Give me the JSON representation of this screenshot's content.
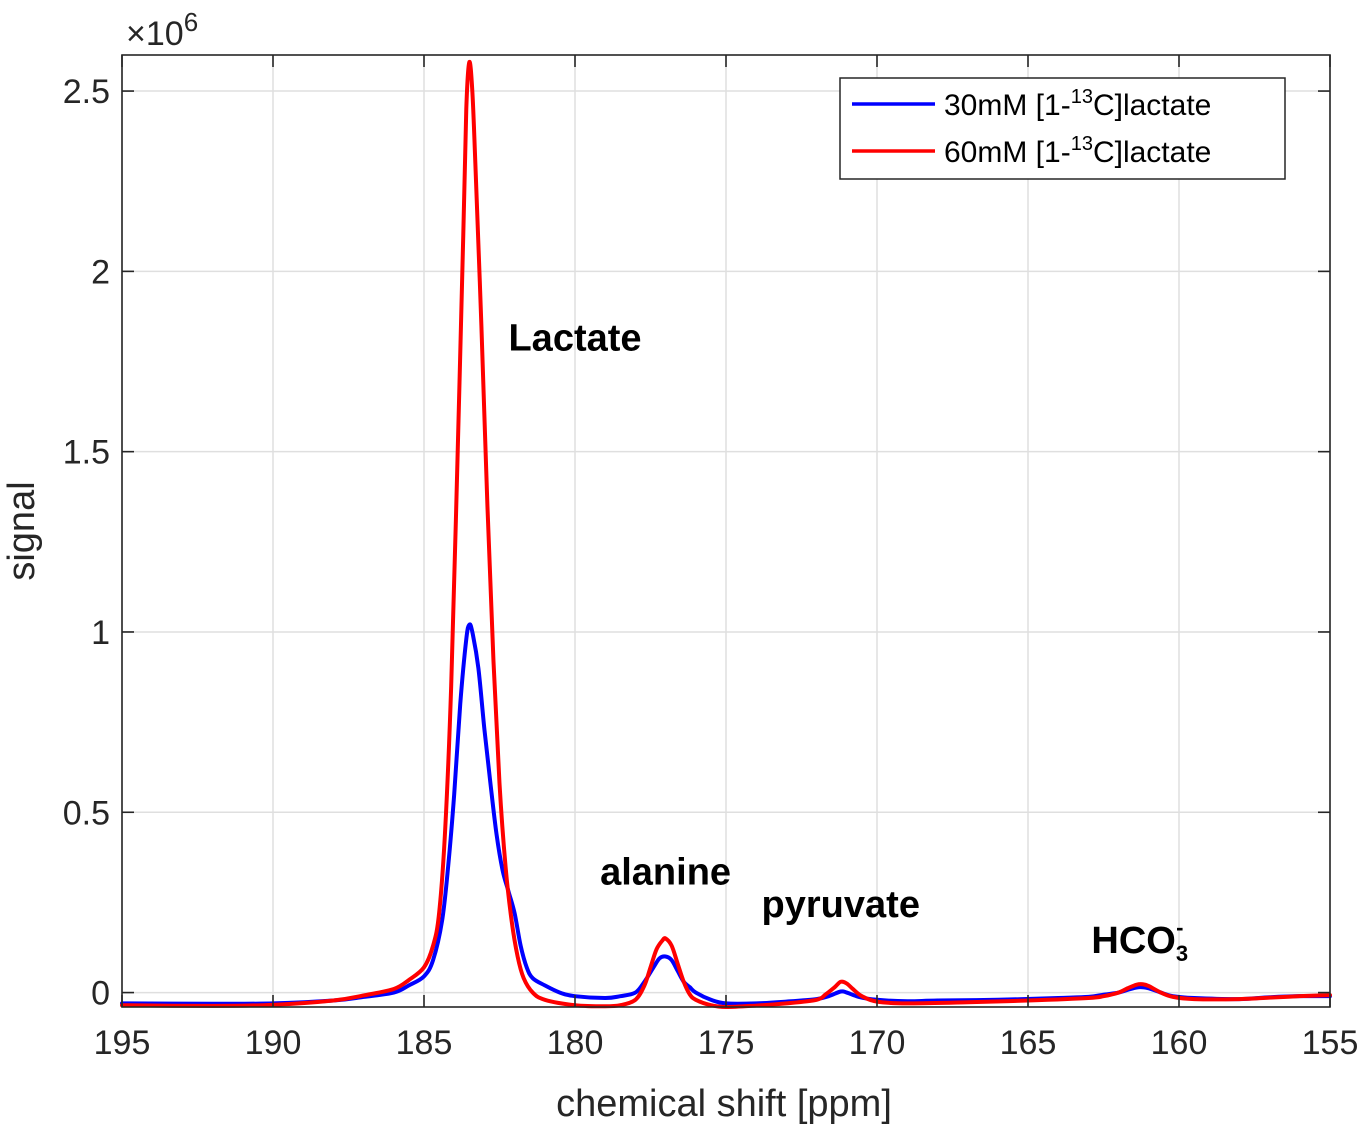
{
  "chart_data": {
    "type": "line",
    "title": "",
    "xlabel": "chemical shift [ppm]",
    "ylabel": "signal",
    "xlim": [
      195,
      155
    ],
    "x_reversed": true,
    "ylim": [
      -0.04,
      2.6
    ],
    "y_scale_label": "×10",
    "y_scale_exponent": "6",
    "grid": true,
    "legend_position": "top-right",
    "x_ticks": [
      195,
      190,
      185,
      180,
      175,
      170,
      165,
      160,
      155
    ],
    "y_ticks": [
      0,
      0.5,
      1,
      1.5,
      2,
      2.5
    ],
    "y_tick_labels": [
      "0",
      "0.5",
      "1",
      "1.5",
      "2",
      "2.5"
    ],
    "series": [
      {
        "name_prefix": "30mM [1-",
        "name_sup": "13",
        "name_suffix": "C]lactate",
        "color": "#0000ff",
        "points": [
          [
            195,
            -0.03
          ],
          [
            192,
            -0.031
          ],
          [
            190,
            -0.03
          ],
          [
            188,
            -0.022
          ],
          [
            187,
            -0.012
          ],
          [
            186,
            0.0
          ],
          [
            185.5,
            0.02
          ],
          [
            185,
            0.045
          ],
          [
            184.7,
            0.09
          ],
          [
            184.4,
            0.2
          ],
          [
            184.2,
            0.35
          ],
          [
            184.0,
            0.55
          ],
          [
            183.8,
            0.8
          ],
          [
            183.6,
            0.98
          ],
          [
            183.5,
            1.02
          ],
          [
            183.4,
            1.0
          ],
          [
            183.2,
            0.9
          ],
          [
            183.0,
            0.73
          ],
          [
            182.8,
            0.58
          ],
          [
            182.6,
            0.44
          ],
          [
            182.4,
            0.34
          ],
          [
            182.2,
            0.28
          ],
          [
            182.0,
            0.22
          ],
          [
            181.8,
            0.13
          ],
          [
            181.6,
            0.07
          ],
          [
            181.4,
            0.04
          ],
          [
            181.0,
            0.02
          ],
          [
            180.5,
            0.0
          ],
          [
            180.0,
            -0.01
          ],
          [
            179.0,
            -0.015
          ],
          [
            178.5,
            -0.01
          ],
          [
            178.0,
            0.0
          ],
          [
            177.7,
            0.03
          ],
          [
            177.4,
            0.07
          ],
          [
            177.2,
            0.095
          ],
          [
            177.0,
            0.1
          ],
          [
            176.8,
            0.09
          ],
          [
            176.6,
            0.06
          ],
          [
            176.4,
            0.03
          ],
          [
            176.2,
            0.015
          ],
          [
            176.0,
            0.0
          ],
          [
            175.5,
            -0.02
          ],
          [
            175.0,
            -0.03
          ],
          [
            174.0,
            -0.03
          ],
          [
            173.0,
            -0.025
          ],
          [
            172.0,
            -0.018
          ],
          [
            171.6,
            -0.01
          ],
          [
            171.2,
            0.003
          ],
          [
            171.0,
            0.0
          ],
          [
            170.6,
            -0.012
          ],
          [
            170.0,
            -0.02
          ],
          [
            169.0,
            -0.024
          ],
          [
            168.0,
            -0.022
          ],
          [
            166.0,
            -0.02
          ],
          [
            164.0,
            -0.015
          ],
          [
            163.0,
            -0.012
          ],
          [
            162.5,
            -0.006
          ],
          [
            162.0,
            0.0
          ],
          [
            161.6,
            0.01
          ],
          [
            161.3,
            0.015
          ],
          [
            161.0,
            0.012
          ],
          [
            160.6,
            0.0
          ],
          [
            160.2,
            -0.01
          ],
          [
            159.5,
            -0.015
          ],
          [
            158.0,
            -0.018
          ],
          [
            157.0,
            -0.013
          ],
          [
            156.0,
            -0.01
          ],
          [
            155.0,
            -0.01
          ]
        ]
      },
      {
        "name_prefix": "60mM [1-",
        "name_sup": "13",
        "name_suffix": "C]lactate",
        "color": "#ff0000",
        "points": [
          [
            195,
            -0.035
          ],
          [
            192,
            -0.037
          ],
          [
            190,
            -0.034
          ],
          [
            188,
            -0.022
          ],
          [
            187,
            -0.008
          ],
          [
            186,
            0.01
          ],
          [
            185.5,
            0.035
          ],
          [
            185,
            0.07
          ],
          [
            184.7,
            0.13
          ],
          [
            184.5,
            0.22
          ],
          [
            184.3,
            0.45
          ],
          [
            184.1,
            0.85
          ],
          [
            183.9,
            1.45
          ],
          [
            183.7,
            2.1
          ],
          [
            183.6,
            2.45
          ],
          [
            183.5,
            2.58
          ],
          [
            183.4,
            2.5
          ],
          [
            183.3,
            2.3
          ],
          [
            183.1,
            1.85
          ],
          [
            182.9,
            1.35
          ],
          [
            182.7,
            0.92
          ],
          [
            182.5,
            0.58
          ],
          [
            182.3,
            0.35
          ],
          [
            182.1,
            0.2
          ],
          [
            181.9,
            0.1
          ],
          [
            181.7,
            0.04
          ],
          [
            181.4,
            0.0
          ],
          [
            181.0,
            -0.02
          ],
          [
            180.0,
            -0.035
          ],
          [
            179.0,
            -0.038
          ],
          [
            178.5,
            -0.035
          ],
          [
            178.0,
            -0.02
          ],
          [
            177.7,
            0.02
          ],
          [
            177.5,
            0.07
          ],
          [
            177.3,
            0.12
          ],
          [
            177.1,
            0.145
          ],
          [
            177.0,
            0.15
          ],
          [
            176.8,
            0.13
          ],
          [
            176.6,
            0.08
          ],
          [
            176.4,
            0.03
          ],
          [
            176.2,
            -0.005
          ],
          [
            176.0,
            -0.02
          ],
          [
            175.5,
            -0.035
          ],
          [
            175.0,
            -0.04
          ],
          [
            174.0,
            -0.036
          ],
          [
            173.0,
            -0.03
          ],
          [
            172.0,
            -0.02
          ],
          [
            171.7,
            -0.005
          ],
          [
            171.4,
            0.015
          ],
          [
            171.2,
            0.03
          ],
          [
            171.0,
            0.025
          ],
          [
            170.8,
            0.01
          ],
          [
            170.5,
            -0.01
          ],
          [
            170.0,
            -0.025
          ],
          [
            169.0,
            -0.03
          ],
          [
            167.0,
            -0.027
          ],
          [
            165.0,
            -0.022
          ],
          [
            163.0,
            -0.015
          ],
          [
            162.5,
            -0.01
          ],
          [
            162.0,
            0.0
          ],
          [
            161.7,
            0.012
          ],
          [
            161.4,
            0.022
          ],
          [
            161.2,
            0.023
          ],
          [
            161.0,
            0.018
          ],
          [
            160.6,
            0.0
          ],
          [
            160.2,
            -0.012
          ],
          [
            159.5,
            -0.018
          ],
          [
            158.0,
            -0.018
          ],
          [
            157.0,
            -0.014
          ],
          [
            156.0,
            -0.01
          ],
          [
            155.0,
            -0.007
          ]
        ]
      }
    ],
    "annotations": [
      {
        "text": "Lactate",
        "x": 180.0,
        "y": 1.78,
        "anchor": "middle"
      },
      {
        "text": "alanine",
        "x": 177.0,
        "y": 0.3,
        "anchor": "middle"
      },
      {
        "text": "pyruvate",
        "x": 171.2,
        "y": 0.21,
        "anchor": "middle"
      },
      {
        "text": "HCO",
        "sub": "3",
        "sup": "-",
        "x": 161.3,
        "y": 0.11,
        "anchor": "middle"
      }
    ]
  }
}
